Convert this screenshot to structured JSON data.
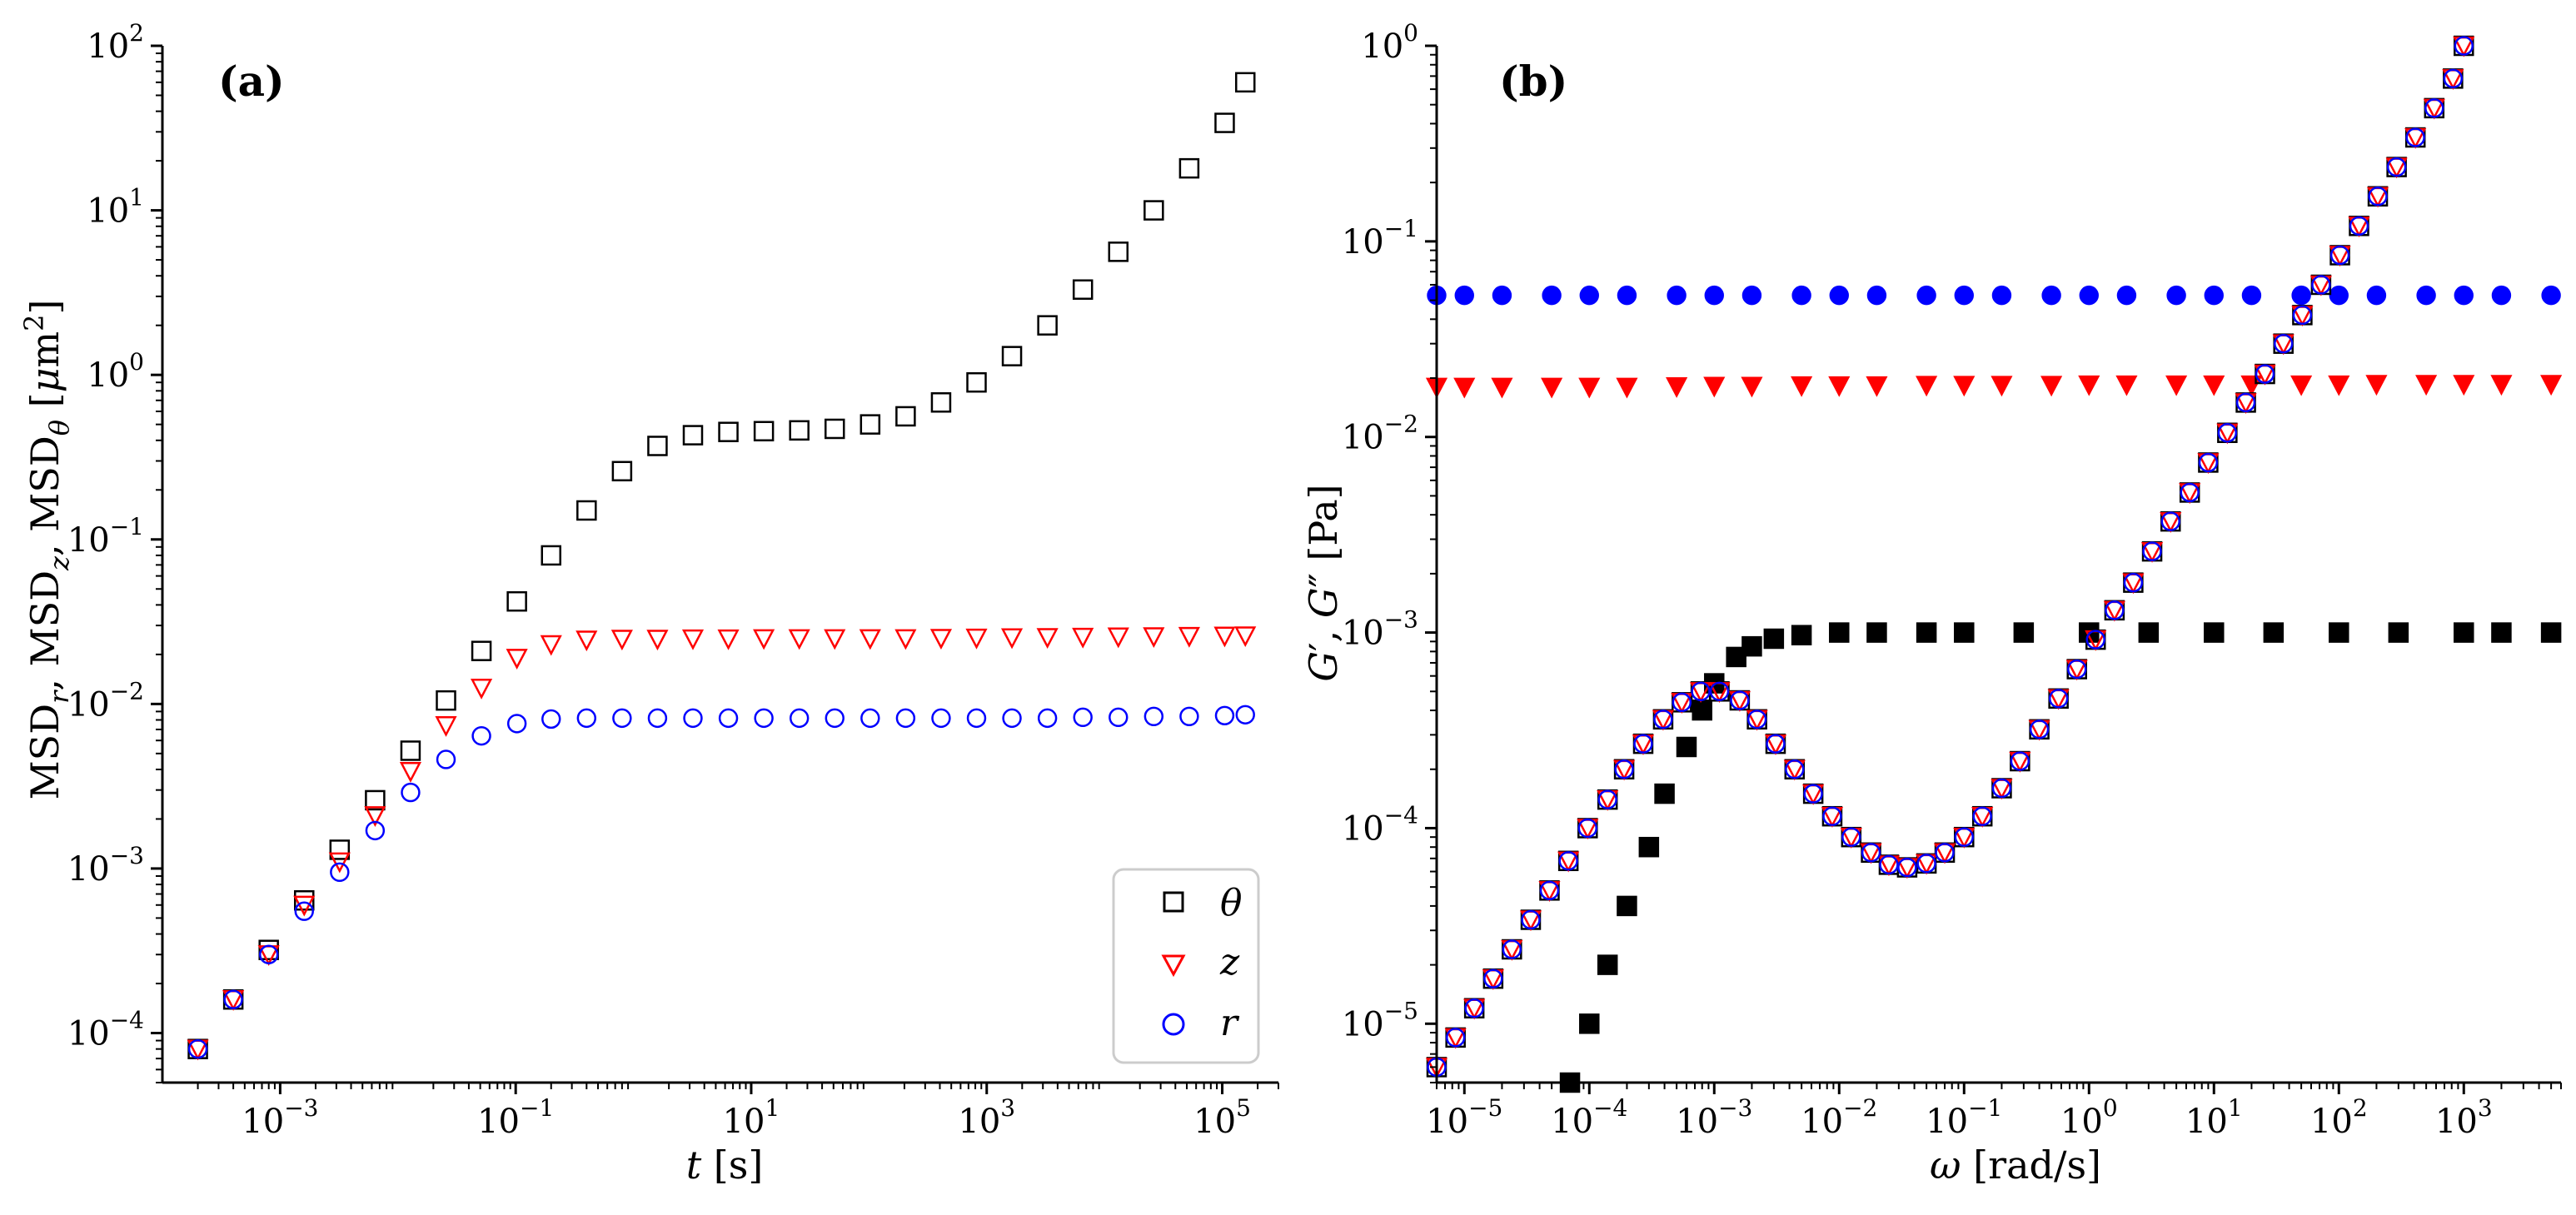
{
  "chart_data": [
    {
      "panel": "(a)",
      "type": "scatter",
      "xlabel": "t [s]",
      "ylabel": "MSD_r, MSD_z, MSD_θ [μm²]",
      "xscale": "log",
      "yscale": "log",
      "xlim": [
        0.0001,
        300000
      ],
      "ylim": [
        5e-05,
        100
      ],
      "x_ticks": [
        0.001,
        0.1,
        10,
        1000,
        100000
      ],
      "x_tick_labels": [
        [
          "10",
          "−3"
        ],
        [
          "10",
          "−1"
        ],
        [
          "10",
          "1"
        ],
        [
          "10",
          "3"
        ],
        [
          "10",
          "5"
        ]
      ],
      "y_ticks": [
        0.0001,
        0.001,
        0.01,
        0.1,
        1,
        10,
        100
      ],
      "y_tick_labels": [
        [
          "10",
          "−4"
        ],
        [
          "10",
          "−3"
        ],
        [
          "10",
          "−2"
        ],
        [
          "10",
          "−1"
        ],
        [
          "10",
          "0"
        ],
        [
          "10",
          "1"
        ],
        [
          "10",
          "2"
        ]
      ],
      "legend_position": "lower-right",
      "legend": [
        "θ",
        "z",
        "r"
      ],
      "series": [
        {
          "name": "θ",
          "marker": "square-open",
          "color": "#000000",
          "x": [
            0.0002,
            0.0004,
            0.0008,
            0.0016,
            0.0032,
            0.0064,
            0.0128,
            0.0256,
            0.0512,
            0.1024,
            0.2,
            0.4,
            0.8,
            1.6,
            3.2,
            6.4,
            12.8,
            25.6,
            51.2,
            102.4,
            204.8,
            409.6,
            819.2,
            1638,
            3277,
            6554,
            13107,
            26214,
            52429,
            104858,
            157000
          ],
          "y": [
            8e-05,
            0.00016,
            0.00032,
            0.00064,
            0.0013,
            0.0026,
            0.0052,
            0.0105,
            0.021,
            0.042,
            0.08,
            0.15,
            0.26,
            0.37,
            0.43,
            0.45,
            0.455,
            0.46,
            0.47,
            0.5,
            0.56,
            0.68,
            0.9,
            1.3,
            2,
            3.3,
            5.6,
            10,
            18,
            34,
            60
          ]
        },
        {
          "name": "z",
          "marker": "triangle-down-open",
          "color": "#ff0000",
          "x": [
            0.0002,
            0.0004,
            0.0008,
            0.0016,
            0.0032,
            0.0064,
            0.0128,
            0.0256,
            0.0512,
            0.1024,
            0.2,
            0.4,
            0.8,
            1.6,
            3.2,
            6.4,
            12.8,
            25.6,
            51.2,
            102.4,
            204.8,
            409.6,
            819.2,
            1638,
            3277,
            6554,
            13107,
            26214,
            52429,
            104858,
            157000
          ],
          "y": [
            8e-05,
            0.00016,
            0.0003,
            0.0006,
            0.0011,
            0.0021,
            0.0039,
            0.0074,
            0.0125,
            0.019,
            0.023,
            0.0245,
            0.0248,
            0.0248,
            0.0249,
            0.0249,
            0.025,
            0.025,
            0.025,
            0.025,
            0.025,
            0.0251,
            0.0252,
            0.0253,
            0.0254,
            0.0255,
            0.0256,
            0.0257,
            0.0258,
            0.0259,
            0.026
          ]
        },
        {
          "name": "r",
          "marker": "circle-open",
          "color": "#0000ff",
          "x": [
            0.0002,
            0.0004,
            0.0008,
            0.0016,
            0.0032,
            0.0064,
            0.0128,
            0.0256,
            0.0512,
            0.1024,
            0.2,
            0.4,
            0.8,
            1.6,
            3.2,
            6.4,
            12.8,
            25.6,
            51.2,
            102.4,
            204.8,
            409.6,
            819.2,
            1638,
            3277,
            6554,
            13107,
            26214,
            52429,
            104858,
            157000
          ],
          "y": [
            8e-05,
            0.00016,
            0.0003,
            0.00055,
            0.00095,
            0.0017,
            0.0029,
            0.0046,
            0.0064,
            0.0076,
            0.0081,
            0.0082,
            0.0082,
            0.0082,
            0.0082,
            0.0082,
            0.0082,
            0.0082,
            0.0082,
            0.0082,
            0.0082,
            0.0082,
            0.0082,
            0.0082,
            0.0082,
            0.0083,
            0.0083,
            0.0084,
            0.0084,
            0.0085,
            0.0086
          ]
        }
      ]
    },
    {
      "panel": "(b)",
      "type": "scatter",
      "xlabel": "ω [rad/s]",
      "ylabel": "G′, G″ [Pa]",
      "xscale": "log",
      "yscale": "log",
      "xlim": [
        6e-06,
        6000
      ],
      "ylim": [
        5e-06,
        1
      ],
      "x_ticks": [
        1e-05,
        0.0001,
        0.001,
        0.01,
        0.1,
        1,
        10,
        100,
        1000
      ],
      "x_tick_labels": [
        [
          "10",
          "−5"
        ],
        [
          "10",
          "−4"
        ],
        [
          "10",
          "−3"
        ],
        [
          "10",
          "−2"
        ],
        [
          "10",
          "−1"
        ],
        [
          "10",
          "0"
        ],
        [
          "10",
          "1"
        ],
        [
          "10",
          "2"
        ],
        [
          "10",
          "3"
        ]
      ],
      "y_ticks": [
        1e-05,
        0.0001,
        0.001,
        0.01,
        0.1,
        1
      ],
      "y_tick_labels": [
        [
          "10",
          "−5"
        ],
        [
          "10",
          "−4"
        ],
        [
          "10",
          "−3"
        ],
        [
          "10",
          "−2"
        ],
        [
          "10",
          "−1"
        ],
        [
          "10",
          "0"
        ]
      ],
      "series": [
        {
          "marker": "circle-filled",
          "color": "#0000ff",
          "x": [
            6e-06,
            1e-05,
            2e-05,
            5e-05,
            0.0001,
            0.0002,
            0.0005,
            0.001,
            0.002,
            0.005,
            0.01,
            0.02,
            0.05,
            0.1,
            0.2,
            0.5,
            1,
            2,
            5,
            10,
            20,
            50,
            100,
            200,
            500,
            1000,
            2000,
            5000
          ],
          "y": [
            0.053,
            0.053,
            0.053,
            0.053,
            0.053,
            0.053,
            0.053,
            0.053,
            0.053,
            0.053,
            0.053,
            0.053,
            0.053,
            0.053,
            0.053,
            0.053,
            0.053,
            0.053,
            0.053,
            0.053,
            0.053,
            0.053,
            0.053,
            0.053,
            0.053,
            0.053,
            0.053,
            0.053
          ]
        },
        {
          "marker": "triangle-down-filled",
          "color": "#ff0000",
          "x": [
            6e-06,
            1e-05,
            2e-05,
            5e-05,
            0.0001,
            0.0002,
            0.0005,
            0.001,
            0.002,
            0.005,
            0.01,
            0.02,
            0.05,
            0.1,
            0.2,
            0.5,
            1,
            2,
            5,
            10,
            20,
            50,
            100,
            200,
            500,
            1000,
            2000,
            5000
          ],
          "y": [
            0.018,
            0.018,
            0.018,
            0.018,
            0.018,
            0.018,
            0.0181,
            0.0182,
            0.0182,
            0.0183,
            0.0183,
            0.0183,
            0.0184,
            0.0184,
            0.0184,
            0.0184,
            0.0185,
            0.0185,
            0.0185,
            0.0185,
            0.0185,
            0.0185,
            0.0185,
            0.0186,
            0.0186,
            0.0186,
            0.0186,
            0.0186
          ]
        },
        {
          "marker": "square-filled",
          "color": "#000000",
          "x": [
            7e-05,
            0.0001,
            0.00014,
            0.0002,
            0.0003,
            0.0004,
            0.0006,
            0.0008,
            0.001,
            0.0015,
            0.002,
            0.003,
            0.005,
            0.01,
            0.02,
            0.05,
            0.1,
            0.3,
            1,
            3,
            10,
            30,
            100,
            300,
            1000,
            2000,
            5000
          ],
          "y": [
            5e-06,
            1e-05,
            2e-05,
            4e-05,
            8e-05,
            0.00015,
            0.00026,
            0.0004,
            0.00055,
            0.00075,
            0.00085,
            0.00093,
            0.00097,
            0.001,
            0.001,
            0.001,
            0.001,
            0.001,
            0.001,
            0.001,
            0.001,
            0.001,
            0.001,
            0.001,
            0.001,
            0.001,
            0.001
          ]
        },
        {
          "marker": "square-open",
          "color": "#000000",
          "x": [
            6e-06,
            8.5e-06,
            1.2e-05,
            1.7e-05,
            2.4e-05,
            3.4e-05,
            4.8e-05,
            6.8e-05,
            9.7e-05,
            0.00014,
            0.00019,
            0.00027,
            0.00039,
            0.00055,
            0.00078,
            0.0011,
            0.0016,
            0.0022,
            0.0031,
            0.0044,
            0.0062,
            0.0088,
            0.0125,
            0.018,
            0.025,
            0.035,
            0.05,
            0.07,
            0.1,
            0.14,
            0.2,
            0.28,
            0.4,
            0.57,
            0.8,
            1.13,
            1.6,
            2.26,
            3.2,
            4.5,
            6.4,
            9,
            12.8,
            18,
            25.6,
            36,
            51,
            72,
            102,
            145,
            205,
            290,
            410,
            580,
            820,
            1000
          ],
          "y": [
            6e-06,
            8.5e-06,
            1.2e-05,
            1.7e-05,
            2.4e-05,
            3.4e-05,
            4.8e-05,
            6.8e-05,
            0.0001,
            0.00014,
            0.0002,
            0.00027,
            0.00036,
            0.00044,
            0.0005,
            0.0005,
            0.00045,
            0.00036,
            0.00027,
            0.0002,
            0.00015,
            0.000115,
            9e-05,
            7.5e-05,
            6.5e-05,
            6.3e-05,
            6.6e-05,
            7.5e-05,
            9e-05,
            0.000115,
            0.00016,
            0.00022,
            0.00032,
            0.00046,
            0.00065,
            0.00092,
            0.0013,
            0.0018,
            0.0026,
            0.0037,
            0.0052,
            0.0074,
            0.0105,
            0.015,
            0.021,
            0.03,
            0.042,
            0.06,
            0.085,
            0.12,
            0.17,
            0.24,
            0.34,
            0.48,
            0.68,
            1
          ]
        },
        {
          "marker": "triangle-down-open",
          "color": "#ff0000",
          "x": [
            6e-06,
            8.5e-06,
            1.2e-05,
            1.7e-05,
            2.4e-05,
            3.4e-05,
            4.8e-05,
            6.8e-05,
            9.7e-05,
            0.00014,
            0.00019,
            0.00027,
            0.00039,
            0.00055,
            0.00078,
            0.0011,
            0.0016,
            0.0022,
            0.0031,
            0.0044,
            0.0062,
            0.0088,
            0.0125,
            0.018,
            0.025,
            0.035,
            0.05,
            0.07,
            0.1,
            0.14,
            0.2,
            0.28,
            0.4,
            0.57,
            0.8,
            1.13,
            1.6,
            2.26,
            3.2,
            4.5,
            6.4,
            9,
            12.8,
            18,
            25.6,
            36,
            51,
            72,
            102,
            145,
            205,
            290,
            410,
            580,
            820,
            1000
          ],
          "y": [
            6e-06,
            8.5e-06,
            1.2e-05,
            1.7e-05,
            2.4e-05,
            3.4e-05,
            4.8e-05,
            6.8e-05,
            0.0001,
            0.00014,
            0.0002,
            0.00027,
            0.00036,
            0.00044,
            0.0005,
            0.0005,
            0.00045,
            0.00036,
            0.00027,
            0.0002,
            0.00015,
            0.000115,
            9e-05,
            7.5e-05,
            6.5e-05,
            6.3e-05,
            6.6e-05,
            7.5e-05,
            9e-05,
            0.000115,
            0.00016,
            0.00022,
            0.00032,
            0.00046,
            0.00065,
            0.00092,
            0.0013,
            0.0018,
            0.0026,
            0.0037,
            0.0052,
            0.0074,
            0.0105,
            0.015,
            0.021,
            0.03,
            0.042,
            0.06,
            0.085,
            0.12,
            0.17,
            0.24,
            0.34,
            0.48,
            0.68,
            1
          ]
        },
        {
          "marker": "circle-open",
          "color": "#0000ff",
          "x": [
            6e-06,
            8.5e-06,
            1.2e-05,
            1.7e-05,
            2.4e-05,
            3.4e-05,
            4.8e-05,
            6.8e-05,
            9.7e-05,
            0.00014,
            0.00019,
            0.00027,
            0.00039,
            0.00055,
            0.00078,
            0.0011,
            0.0016,
            0.0022,
            0.0031,
            0.0044,
            0.0062,
            0.0088,
            0.0125,
            0.018,
            0.025,
            0.035,
            0.05,
            0.07,
            0.1,
            0.14,
            0.2,
            0.28,
            0.4,
            0.57,
            0.8,
            1.13,
            1.6,
            2.26,
            3.2,
            4.5,
            6.4,
            9,
            12.8,
            18,
            25.6,
            36,
            51,
            72,
            102,
            145,
            205,
            290,
            410,
            580,
            820,
            1000
          ],
          "y": [
            6e-06,
            8.5e-06,
            1.2e-05,
            1.7e-05,
            2.4e-05,
            3.4e-05,
            4.8e-05,
            6.8e-05,
            0.0001,
            0.00014,
            0.0002,
            0.00027,
            0.00036,
            0.00044,
            0.0005,
            0.0005,
            0.00045,
            0.00036,
            0.00027,
            0.0002,
            0.00015,
            0.000115,
            9e-05,
            7.5e-05,
            6.5e-05,
            6.3e-05,
            6.6e-05,
            7.5e-05,
            9e-05,
            0.000115,
            0.00016,
            0.00022,
            0.00032,
            0.00046,
            0.00065,
            0.00092,
            0.0013,
            0.0018,
            0.0026,
            0.0037,
            0.0052,
            0.0074,
            0.0105,
            0.015,
            0.021,
            0.03,
            0.042,
            0.06,
            0.085,
            0.12,
            0.17,
            0.24,
            0.34,
            0.48,
            0.68,
            1
          ]
        }
      ]
    }
  ]
}
